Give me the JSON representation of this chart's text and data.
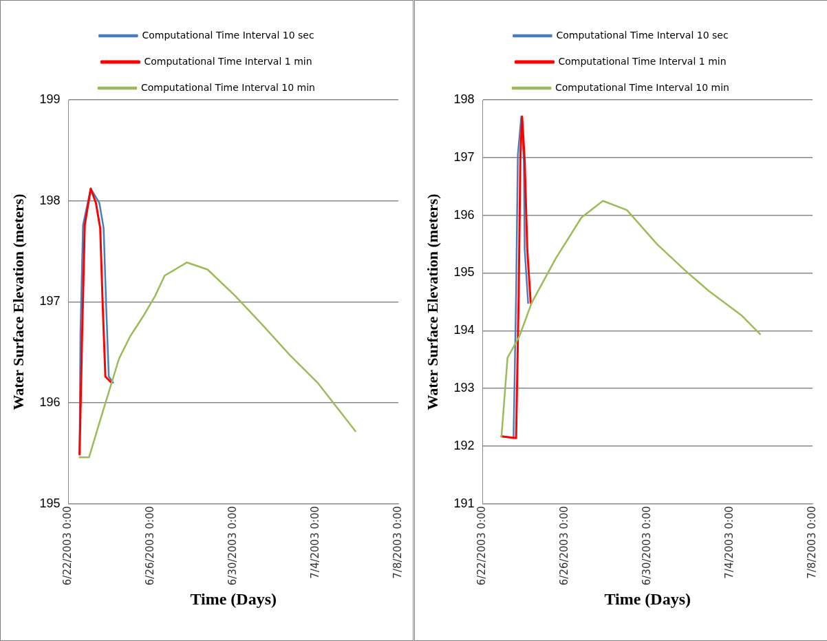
{
  "chart_data": [
    {
      "type": "line",
      "xlabel": "Time (Days)",
      "ylabel": "Water Surface Elevation (meters)",
      "ylim": [
        195,
        199
      ],
      "yticks": [
        195,
        196,
        197,
        198,
        199
      ],
      "xlim": [
        "2003-06-22",
        "2003-07-08"
      ],
      "xticks": [
        {
          "value": "2003-06-22",
          "label": "6/22/2003 0:00"
        },
        {
          "value": "2003-06-26",
          "label": "6/26/2003 0:00"
        },
        {
          "value": "2003-06-30",
          "label": "6/30/2003 0:00"
        },
        {
          "value": "2003-07-04",
          "label": "7/4/2003 0:00"
        },
        {
          "value": "2003-07-08",
          "label": "7/8/2003 0:00"
        }
      ],
      "grid": "y",
      "legend": "top",
      "marker": "none",
      "line_style": "solid",
      "series": [
        {
          "name": "Computational Time Interval 10 sec",
          "color": "#4a7ebb",
          "x": [
            "2003-06-22T13:00",
            "2003-06-22T14:00",
            "2003-06-22T17:00",
            "2003-06-23T02:00",
            "2003-06-23T12:00",
            "2003-06-23T17:00",
            "2003-06-23T20:00",
            "2003-06-23T23:00",
            "2003-06-24T04:00"
          ],
          "values": [
            195.49,
            196.69,
            197.76,
            198.12,
            197.98,
            197.73,
            196.95,
            196.26,
            196.2
          ]
        },
        {
          "name": "Computational Time Interval 1 min",
          "color": "#ff0000",
          "x": [
            "2003-06-22T13:00",
            "2003-06-22T16:00",
            "2003-06-22T19:00",
            "2003-06-23T02:00",
            "2003-06-23T08:00",
            "2003-06-23T13:00",
            "2003-06-23T16:00",
            "2003-06-23T19:00",
            "2003-06-24T02:00"
          ],
          "values": [
            195.49,
            196.69,
            197.76,
            198.12,
            197.98,
            197.73,
            196.95,
            196.26,
            196.2
          ]
        },
        {
          "name": "Computational Time Interval 10 min",
          "color": "#9bbb59",
          "x": [
            "2003-06-22T13:00",
            "2003-06-23T00:00",
            "2003-06-23T13:00",
            "2003-06-24T02:00",
            "2003-06-24T11:00",
            "2003-06-25T00:00",
            "2003-06-25T16:00",
            "2003-06-26T05:00",
            "2003-06-26T16:00",
            "2003-06-27T18:00",
            "2003-06-28T18:00",
            "2003-06-30T02:00",
            "2003-07-01T10:00",
            "2003-07-02T18:00",
            "2003-07-04T02:00",
            "2003-07-05T00:00",
            "2003-07-05T22:00"
          ],
          "values": [
            195.46,
            195.46,
            195.83,
            196.19,
            196.44,
            196.66,
            196.87,
            197.06,
            197.26,
            197.39,
            197.32,
            197.06,
            196.77,
            196.47,
            196.2,
            195.96,
            195.72
          ]
        }
      ]
    },
    {
      "type": "line",
      "xlabel": "Time (Days)",
      "ylabel": "Water Surface Elevation (meters)",
      "ylim": [
        191,
        198
      ],
      "yticks": [
        191,
        192,
        193,
        194,
        195,
        196,
        197,
        198
      ],
      "xlim": [
        "2003-06-22",
        "2003-07-08"
      ],
      "xticks": [
        {
          "value": "2003-06-22",
          "label": "6/22/2003 0:00"
        },
        {
          "value": "2003-06-26",
          "label": "6/26/2003 0:00"
        },
        {
          "value": "2003-06-30",
          "label": "6/30/2003 0:00"
        },
        {
          "value": "2003-07-04",
          "label": "7/4/2003 0:00"
        },
        {
          "value": "2003-07-08",
          "label": "7/8/2003 0:00"
        }
      ],
      "grid": "y",
      "legend": "top",
      "marker": "none",
      "line_style": "solid",
      "series": [
        {
          "name": "Computational Time Interval 10 sec",
          "color": "#4a7ebb",
          "x": [
            "2003-06-22T22:00",
            "2003-06-23T12:00",
            "2003-06-23T15:00",
            "2003-06-23T17:00",
            "2003-06-23T21:00",
            "2003-06-24T00:00",
            "2003-06-24T01:00",
            "2003-06-24T05:00"
          ],
          "values": [
            192.17,
            192.14,
            194.63,
            197.04,
            197.71,
            196.94,
            195.4,
            194.48
          ]
        },
        {
          "name": "Computational Time Interval 1 min",
          "color": "#ff0000",
          "x": [
            "2003-06-22T22:00",
            "2003-06-23T15:00",
            "2003-06-23T18:00",
            "2003-06-23T20:00",
            "2003-06-23T22:00",
            "2003-06-24T01:00",
            "2003-06-24T04:00",
            "2003-06-24T08:00"
          ],
          "values": [
            192.17,
            192.14,
            194.63,
            197.04,
            197.71,
            196.94,
            195.4,
            194.48
          ]
        },
        {
          "name": "Computational Time Interval 10 min",
          "color": "#9bbb59",
          "x": [
            "2003-06-22T22:00",
            "2003-06-23T05:00",
            "2003-06-23T19:00",
            "2003-06-24T09:00",
            "2003-06-25T13:00",
            "2003-06-26T19:00",
            "2003-06-27T20:00",
            "2003-06-29T00:00",
            "2003-06-30T11:00",
            "2003-07-01T20:00",
            "2003-07-03T00:00",
            "2003-07-04T13:00",
            "2003-07-05T11:00"
          ],
          "values": [
            192.17,
            193.53,
            193.91,
            194.48,
            195.25,
            195.96,
            196.25,
            196.09,
            195.5,
            195.04,
            194.68,
            194.27,
            193.94
          ]
        }
      ]
    }
  ]
}
